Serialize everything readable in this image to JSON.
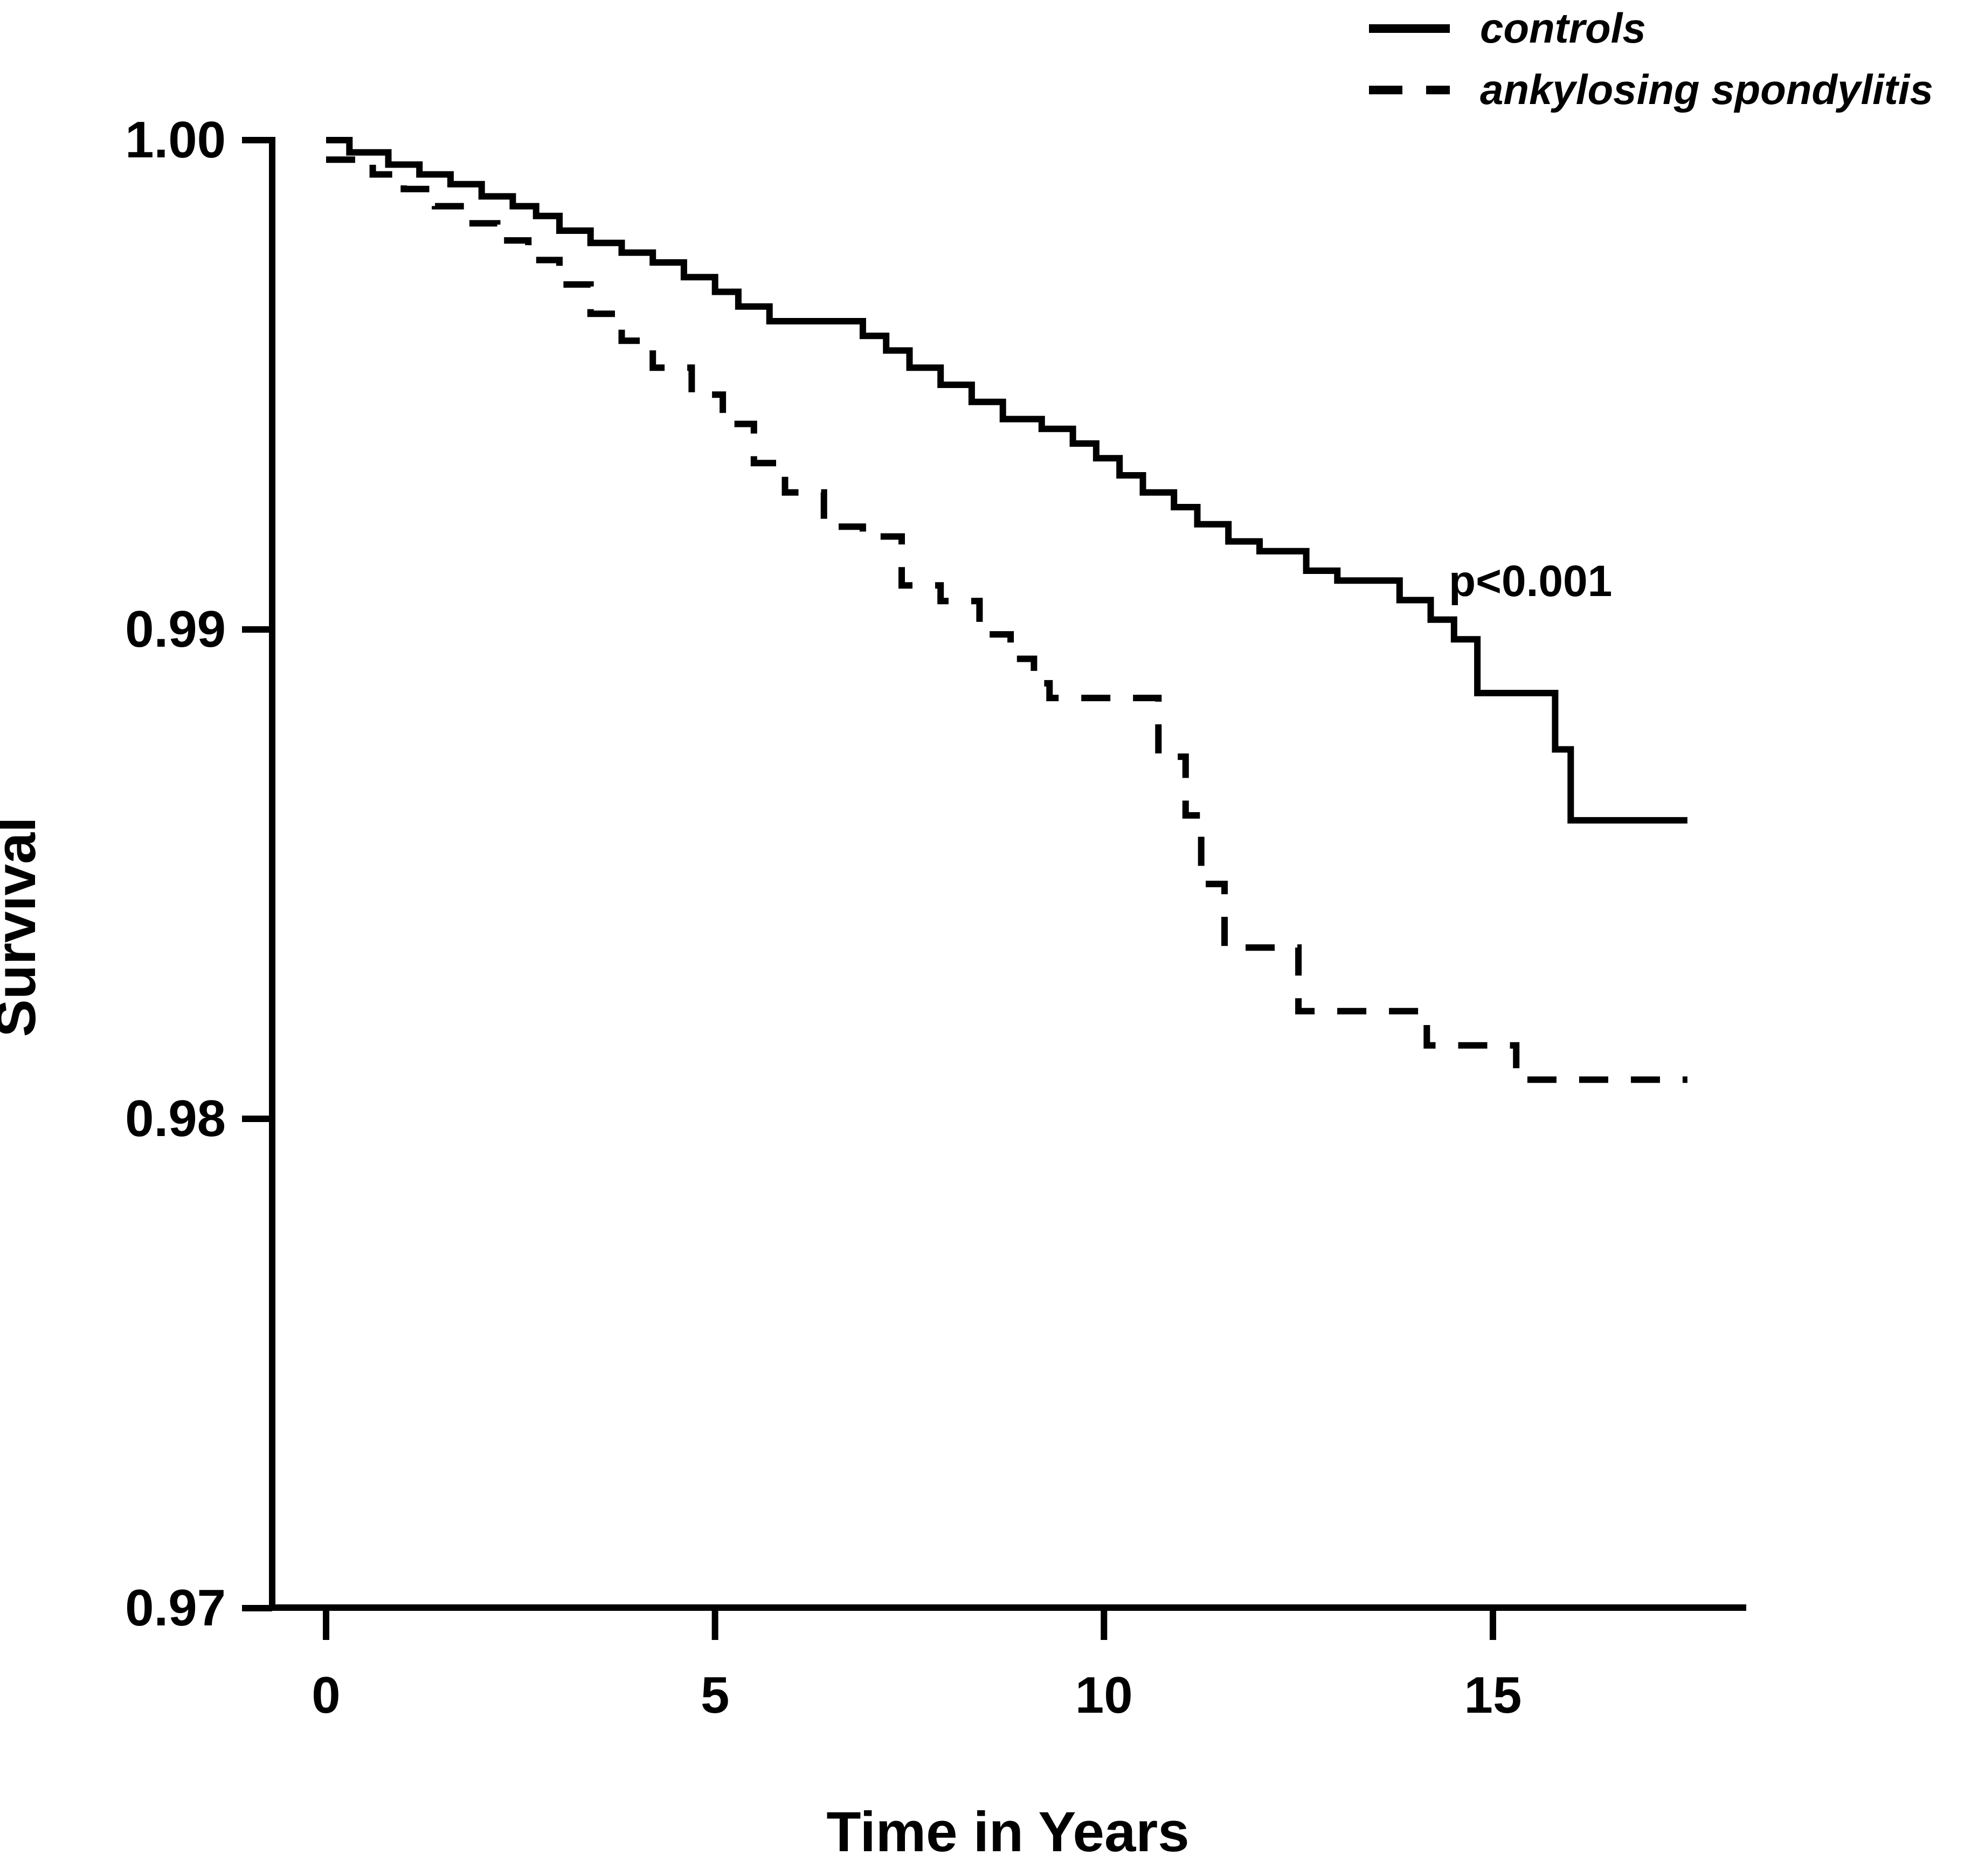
{
  "figure": {
    "background": "#ffffff",
    "ink_color": "#000000"
  },
  "chart_data": {
    "type": "line",
    "variant": "kaplan-meier-step-plot",
    "title": "",
    "xlabel": "Time in Years",
    "ylabel": "Survival",
    "annotation": "p<0.001",
    "legend_position": "top-right",
    "grid": false,
    "xlim": [
      0,
      18.3
    ],
    "ylim": [
      0.97,
      1.0
    ],
    "x_ticks": [
      0,
      5,
      10,
      15
    ],
    "x_tick_labels": [
      "0",
      "5",
      "10",
      "15"
    ],
    "y_ticks": [
      1.0,
      0.99,
      0.98,
      0.97
    ],
    "y_tick_labels": [
      "1.00",
      "0.99",
      "0.98",
      "0.97"
    ],
    "t_end": 17.5,
    "series": [
      {
        "name": "controls",
        "style": "solid",
        "color": "#000000",
        "points": [
          [
            0,
            1.0
          ],
          [
            0.3,
            0.99975
          ],
          [
            0.8,
            0.9995
          ],
          [
            1.2,
            0.9993
          ],
          [
            1.6,
            0.9991
          ],
          [
            2.0,
            0.99885
          ],
          [
            2.4,
            0.99865
          ],
          [
            2.7,
            0.99845
          ],
          [
            3.0,
            0.99815
          ],
          [
            3.4,
            0.9979
          ],
          [
            3.8,
            0.9977
          ],
          [
            4.2,
            0.9975
          ],
          [
            4.6,
            0.9972
          ],
          [
            5.0,
            0.9969
          ],
          [
            5.3,
            0.9966
          ],
          [
            5.7,
            0.9963
          ],
          [
            6.9,
            0.996
          ],
          [
            7.2,
            0.9957
          ],
          [
            7.5,
            0.99535
          ],
          [
            7.9,
            0.995
          ],
          [
            8.3,
            0.99465
          ],
          [
            8.7,
            0.9943
          ],
          [
            9.2,
            0.9941
          ],
          [
            9.6,
            0.9938
          ],
          [
            9.9,
            0.9935
          ],
          [
            10.2,
            0.99315
          ],
          [
            10.5,
            0.9928
          ],
          [
            10.9,
            0.9925
          ],
          [
            11.2,
            0.99215
          ],
          [
            11.6,
            0.9918
          ],
          [
            12.0,
            0.9916
          ],
          [
            12.6,
            0.9912
          ],
          [
            13.0,
            0.991
          ],
          [
            13.8,
            0.9906
          ],
          [
            14.2,
            0.9902
          ],
          [
            14.5,
            0.9898
          ],
          [
            14.8,
            0.9887
          ],
          [
            15.8,
            0.98755
          ],
          [
            16.0,
            0.9861
          ]
        ]
      },
      {
        "name": "ankylosing spondylitis",
        "style": "dashed",
        "color": "#000000",
        "points": [
          [
            0,
            0.9996
          ],
          [
            0.6,
            0.9993
          ],
          [
            1.0,
            0.999
          ],
          [
            1.4,
            0.99865
          ],
          [
            1.8,
            0.9983
          ],
          [
            2.2,
            0.99795
          ],
          [
            2.6,
            0.99755
          ],
          [
            3.0,
            0.99705
          ],
          [
            3.4,
            0.99645
          ],
          [
            3.8,
            0.9959
          ],
          [
            4.2,
            0.99535
          ],
          [
            4.7,
            0.9948
          ],
          [
            5.1,
            0.9942
          ],
          [
            5.5,
            0.9934
          ],
          [
            5.9,
            0.9928
          ],
          [
            6.4,
            0.9921
          ],
          [
            6.9,
            0.9919
          ],
          [
            7.4,
            0.9909
          ],
          [
            7.9,
            0.99058
          ],
          [
            8.4,
            0.9899
          ],
          [
            8.8,
            0.9894
          ],
          [
            9.1,
            0.9889
          ],
          [
            9.3,
            0.9886
          ],
          [
            10.7,
            0.9874
          ],
          [
            11.05,
            0.9862
          ],
          [
            11.25,
            0.9848
          ],
          [
            11.55,
            0.9835
          ],
          [
            12.5,
            0.9822
          ],
          [
            14.15,
            0.9815
          ],
          [
            15.3,
            0.9808
          ]
        ]
      }
    ]
  }
}
